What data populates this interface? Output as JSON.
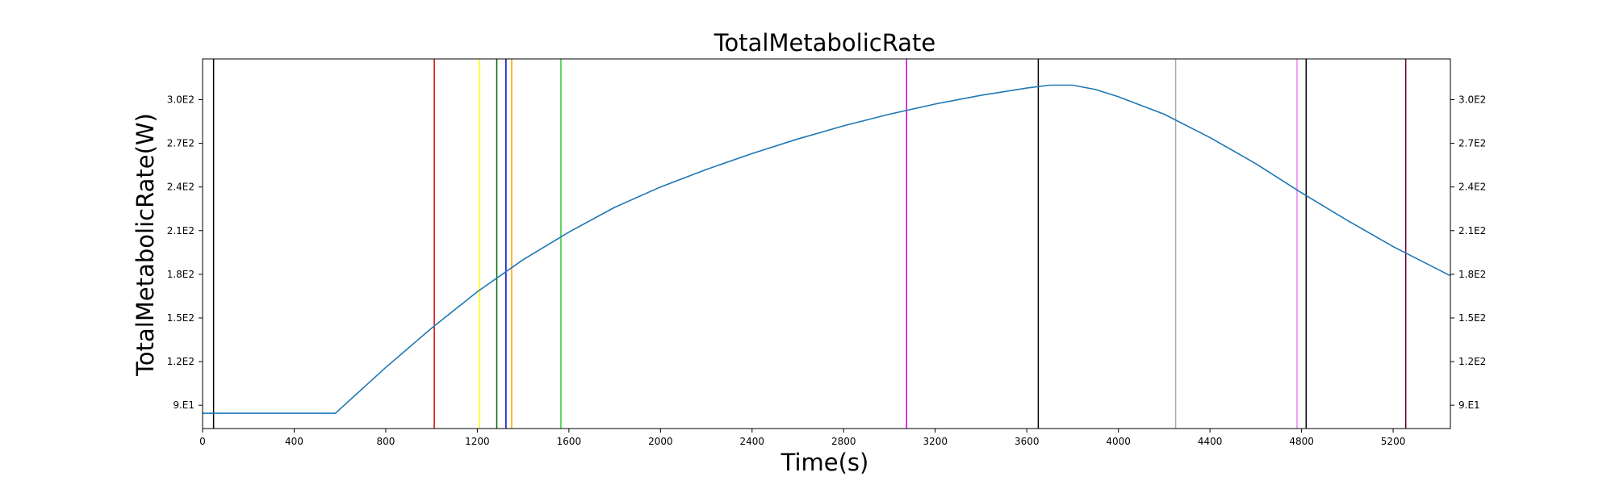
{
  "chart_data": {
    "type": "line",
    "title": "TotalMetabolicRate",
    "xlabel": "Time(s)",
    "ylabel": "TotalMetabolicRate(W)",
    "xlim": [
      0,
      5450
    ],
    "ylim": [
      74,
      328
    ],
    "x_ticks": [
      {
        "value": 0,
        "label": "0"
      },
      {
        "value": 400,
        "label": "400"
      },
      {
        "value": 800,
        "label": "800"
      },
      {
        "value": 1200,
        "label": "1200"
      },
      {
        "value": 1600,
        "label": "1600"
      },
      {
        "value": 2000,
        "label": "2000"
      },
      {
        "value": 2400,
        "label": "2400"
      },
      {
        "value": 2800,
        "label": "2800"
      },
      {
        "value": 3200,
        "label": "3200"
      },
      {
        "value": 3600,
        "label": "3600"
      },
      {
        "value": 4000,
        "label": "4000"
      },
      {
        "value": 4400,
        "label": "4400"
      },
      {
        "value": 4800,
        "label": "4800"
      },
      {
        "value": 5200,
        "label": "5200"
      }
    ],
    "y_ticks": [
      {
        "value": 90,
        "label": "9.E1"
      },
      {
        "value": 120,
        "label": "1.2E2"
      },
      {
        "value": 150,
        "label": "1.5E2"
      },
      {
        "value": 180,
        "label": "1.8E2"
      },
      {
        "value": 210,
        "label": "2.1E2"
      },
      {
        "value": 240,
        "label": "2.4E2"
      },
      {
        "value": 270,
        "label": "2.7E2"
      },
      {
        "value": 300,
        "label": "3.0E2"
      }
    ],
    "grid": false,
    "line_color": "#1f77b4",
    "series": [
      {
        "x": [
          0,
          580,
          800,
          1000,
          1200,
          1400,
          1600,
          1800,
          2000,
          2200,
          2400,
          2600,
          2800,
          3000,
          3200,
          3400,
          3600,
          3700,
          3800,
          3900,
          4000,
          4200,
          4400,
          4600,
          4800,
          5000,
          5200,
          5450
        ],
        "y": [
          84.5,
          84.5,
          116,
          143,
          168,
          190,
          209,
          226,
          240,
          252,
          263,
          273,
          282,
          290,
          297,
          303,
          308,
          310,
          310,
          307,
          302,
          290,
          274,
          256,
          236,
          217,
          199,
          179
        ]
      }
    ],
    "vertical_lines": [
      {
        "x": 48,
        "color": "#000000"
      },
      {
        "x": 1012,
        "color": "#cc0000"
      },
      {
        "x": 1210,
        "color": "#ffff00"
      },
      {
        "x": 1285,
        "color": "#006400"
      },
      {
        "x": 1325,
        "color": "#0000cc"
      },
      {
        "x": 1350,
        "color": "#ffa500"
      },
      {
        "x": 1565,
        "color": "#32cd32"
      },
      {
        "x": 3075,
        "color": "#cc00cc"
      },
      {
        "x": 3650,
        "color": "#000000"
      },
      {
        "x": 4250,
        "color": "#aaaaaa"
      },
      {
        "x": 4780,
        "color": "#ee82ee"
      },
      {
        "x": 4820,
        "color": "#000000"
      },
      {
        "x": 5255,
        "color": "#660033"
      }
    ]
  }
}
